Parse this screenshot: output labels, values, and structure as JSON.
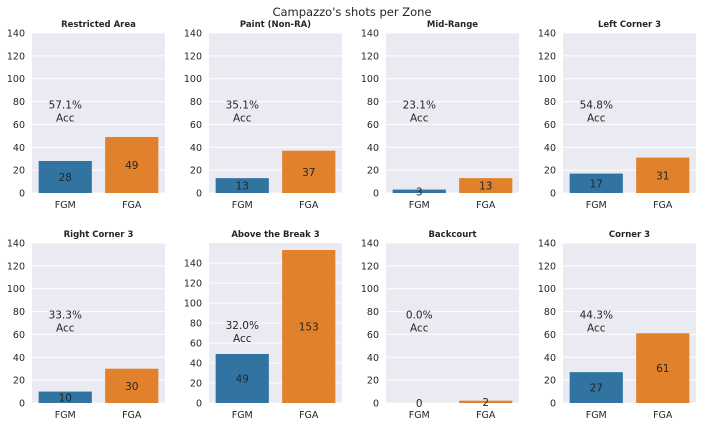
{
  "title": "Campazzo's shots per Zone",
  "chart_data": [
    {
      "type": "bar",
      "title": "Restricted Area",
      "categories": [
        "FGM",
        "FGA"
      ],
      "values": [
        28,
        49
      ],
      "accuracy": "57.1%",
      "accuracy_label": "Acc",
      "ylim": [
        0,
        140
      ],
      "yticks": [
        "0",
        "20",
        "40",
        "60",
        "80",
        "100",
        "120",
        "140"
      ],
      "grid": true
    },
    {
      "type": "bar",
      "title": "Paint (Non-RA)",
      "categories": [
        "FGM",
        "FGA"
      ],
      "values": [
        13,
        37
      ],
      "accuracy": "35.1%",
      "accuracy_label": "Acc",
      "ylim": [
        0,
        140
      ],
      "yticks": [
        "0",
        "20",
        "40",
        "60",
        "80",
        "100",
        "120",
        "140"
      ],
      "grid": true
    },
    {
      "type": "bar",
      "title": "Mid-Range",
      "categories": [
        "FGM",
        "FGA"
      ],
      "values": [
        3,
        13
      ],
      "accuracy": "23.1%",
      "accuracy_label": "Acc",
      "ylim": [
        0,
        140
      ],
      "yticks": [
        "0",
        "20",
        "40",
        "60",
        "80",
        "100",
        "120",
        "140"
      ],
      "grid": true
    },
    {
      "type": "bar",
      "title": "Left Corner 3",
      "categories": [
        "FGM",
        "FGA"
      ],
      "values": [
        17,
        31
      ],
      "accuracy": "54.8%",
      "accuracy_label": "Acc",
      "ylim": [
        0,
        140
      ],
      "yticks": [
        "0",
        "20",
        "40",
        "60",
        "80",
        "100",
        "120",
        "140"
      ],
      "grid": true
    },
    {
      "type": "bar",
      "title": "Right Corner 3",
      "categories": [
        "FGM",
        "FGA"
      ],
      "values": [
        10,
        30
      ],
      "accuracy": "33.3%",
      "accuracy_label": "Acc",
      "ylim": [
        0,
        140
      ],
      "yticks": [
        "0",
        "20",
        "40",
        "60",
        "80",
        "100",
        "120",
        "140"
      ],
      "grid": true
    },
    {
      "type": "bar",
      "title": "Above the Break 3",
      "categories": [
        "FGM",
        "FGA"
      ],
      "values": [
        49,
        153
      ],
      "accuracy": "32.0%",
      "accuracy_label": "Acc",
      "ylim": [
        0,
        160
      ],
      "yticks": [
        "0",
        "20",
        "40",
        "60",
        "80",
        "100",
        "120",
        "140"
      ],
      "grid": true
    },
    {
      "type": "bar",
      "title": "Backcourt",
      "categories": [
        "FGM",
        "FGA"
      ],
      "values": [
        0,
        2
      ],
      "accuracy": "0.0%",
      "accuracy_label": "Acc",
      "ylim": [
        0,
        140
      ],
      "yticks": [
        "0",
        "20",
        "40",
        "60",
        "80",
        "100",
        "120",
        "140"
      ],
      "grid": true
    },
    {
      "type": "bar",
      "title": "Corner 3",
      "categories": [
        "FGM",
        "FGA"
      ],
      "values": [
        27,
        61
      ],
      "accuracy": "44.3%",
      "accuracy_label": "Acc",
      "ylim": [
        0,
        140
      ],
      "yticks": [
        "0",
        "20",
        "40",
        "60",
        "80",
        "100",
        "120",
        "140"
      ],
      "grid": true
    }
  ],
  "colors": {
    "fgm": "#3274a1",
    "fga": "#e1812c",
    "axes_bg": "#eaeaf2",
    "grid": "#ffffff"
  }
}
